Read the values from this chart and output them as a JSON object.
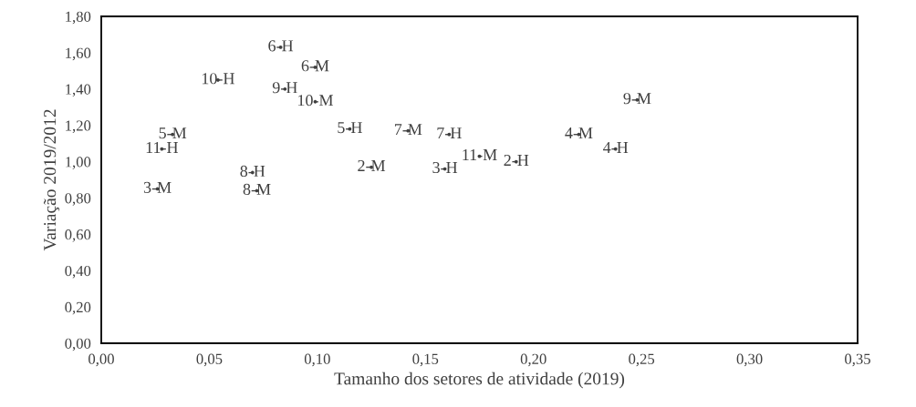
{
  "chart_data": {
    "type": "scatter",
    "xlabel": "Tamanho dos setores de atividade (2019)",
    "ylabel": "Variação 2019/2012",
    "series": [
      {
        "color": "#404040",
        "x": [
          0.083,
          0.099,
          0.054,
          0.085,
          0.099,
          0.115,
          0.142,
          0.161,
          0.033,
          0.028,
          0.175,
          0.125,
          0.159,
          0.192,
          0.026,
          0.07,
          0.072,
          0.221,
          0.238,
          0.248
        ],
        "values": [
          1.63,
          1.52,
          1.45,
          1.4,
          1.33,
          1.18,
          1.17,
          1.15,
          1.15,
          1.07,
          1.03,
          0.97,
          0.96,
          1.0,
          0.85,
          0.94,
          0.84,
          1.15,
          1.07,
          1.34
        ]
      }
    ],
    "annotations": [
      {
        "text": "6-H",
        "x": 0.083,
        "y": 1.63
      },
      {
        "text": "6-M",
        "x": 0.099,
        "y": 1.52
      },
      {
        "text": "10-H",
        "x": 0.054,
        "y": 1.45
      },
      {
        "text": "9-H",
        "x": 0.085,
        "y": 1.4
      },
      {
        "text": "10-M",
        "x": 0.099,
        "y": 1.33
      },
      {
        "text": "5-H",
        "x": 0.115,
        "y": 1.18
      },
      {
        "text": "7-M",
        "x": 0.142,
        "y": 1.17
      },
      {
        "text": "7-H",
        "x": 0.161,
        "y": 1.15
      },
      {
        "text": "5-M",
        "x": 0.033,
        "y": 1.15
      },
      {
        "text": "11-H",
        "x": 0.028,
        "y": 1.07
      },
      {
        "text": "11-M",
        "x": 0.175,
        "y": 1.03
      },
      {
        "text": "2-M",
        "x": 0.125,
        "y": 0.97
      },
      {
        "text": "3-H",
        "x": 0.159,
        "y": 0.96
      },
      {
        "text": "2-H",
        "x": 0.192,
        "y": 1.0
      },
      {
        "text": "3-M",
        "x": 0.026,
        "y": 0.85
      },
      {
        "text": "8-H",
        "x": 0.07,
        "y": 0.94
      },
      {
        "text": "8-M",
        "x": 0.072,
        "y": 0.84
      },
      {
        "text": "4-M",
        "x": 0.221,
        "y": 1.15
      },
      {
        "text": "4-H",
        "x": 0.238,
        "y": 1.07
      },
      {
        "text": "9-M",
        "x": 0.248,
        "y": 1.34
      }
    ],
    "xlim": [
      0,
      0.35
    ],
    "xticks": [
      {
        "value": 0,
        "label": "0,00"
      },
      {
        "value": 0.05,
        "label": "0,05"
      },
      {
        "value": 0.1,
        "label": "0,10"
      },
      {
        "value": 0.15,
        "label": "0,15"
      },
      {
        "value": 0.2,
        "label": "0,20"
      },
      {
        "value": 0.25,
        "label": "0,25"
      },
      {
        "value": 0.3,
        "label": "0,30"
      },
      {
        "value": 0.35,
        "label": "0,35"
      }
    ],
    "ylim": [
      0,
      1.8
    ],
    "yticks": [
      {
        "value": 0,
        "label": "0,00"
      },
      {
        "value": 0.2,
        "label": "0,20"
      },
      {
        "value": 0.4,
        "label": "0,40"
      },
      {
        "value": 0.6,
        "label": "0,60"
      },
      {
        "value": 0.8,
        "label": "0,80"
      },
      {
        "value": 1.0,
        "label": "1,00"
      },
      {
        "value": 1.2,
        "label": "1,20"
      },
      {
        "value": 1.4,
        "label": "1,40"
      },
      {
        "value": 1.6,
        "label": "1,60"
      },
      {
        "value": 1.8,
        "label": "1,80"
      }
    ],
    "grid": false,
    "legend": false
  }
}
